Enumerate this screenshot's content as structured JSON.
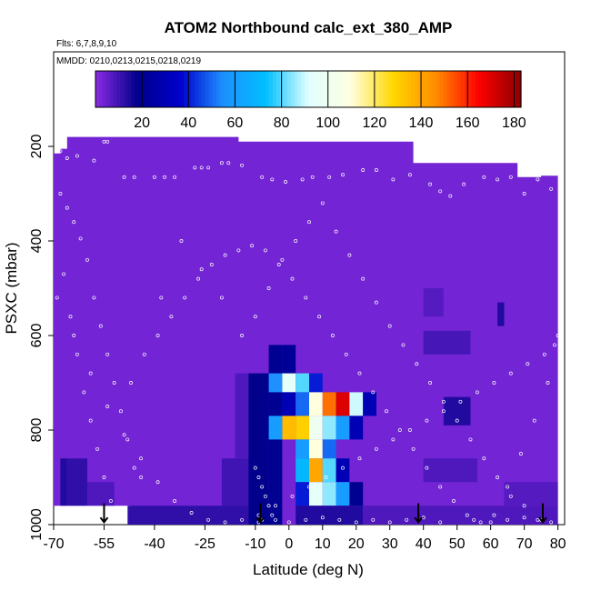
{
  "chart_data": {
    "type": "heatmap",
    "title": "ATOM2 Northbound calc_ext_380_AMP",
    "subtitle_flights": "Flts: 6,7,8,9,10",
    "subtitle_dates": "MMDD: 0210,0213,0215,0218,0219",
    "xlabel": "Latitude (deg N)",
    "ylabel": "PSXC (mbar)",
    "xlim": [
      -70,
      82
    ],
    "ylim": [
      1000,
      0
    ],
    "x_ticks": [
      -70,
      -55,
      -40,
      -25,
      -10,
      0,
      10,
      20,
      30,
      40,
      50,
      60,
      70,
      80
    ],
    "y_ticks": [
      200,
      400,
      600,
      800,
      1000
    ],
    "colorbar": {
      "range": [
        0,
        183
      ],
      "ticks": [
        20,
        40,
        60,
        80,
        100,
        120,
        140,
        160,
        180
      ],
      "colors": [
        "#8a2be2",
        "#00008b",
        "#0000cd",
        "#1e90ff",
        "#00bfff",
        "#e0ffff",
        "#ffffe0",
        "#ffd700",
        "#ff8c00",
        "#ff0000",
        "#8b0000"
      ]
    },
    "background_value": 3,
    "cells": [
      {
        "lat_min": -68,
        "lat_max": -66,
        "p_min": 860,
        "p_max": 960,
        "value": 14
      },
      {
        "lat_min": -66,
        "lat_max": -60,
        "p_min": 860,
        "p_max": 960,
        "value": 12
      },
      {
        "lat_min": -60,
        "lat_max": -52,
        "p_min": 910,
        "p_max": 960,
        "value": 8
      },
      {
        "lat_min": -48,
        "lat_max": -12,
        "p_min": 960,
        "p_max": 1000,
        "value": 12
      },
      {
        "lat_min": -20,
        "lat_max": -12,
        "p_min": 860,
        "p_max": 960,
        "value": 10
      },
      {
        "lat_min": -16,
        "lat_max": -12,
        "p_min": 680,
        "p_max": 860,
        "value": 8
      },
      {
        "lat_min": -12,
        "lat_max": -6,
        "p_min": 680,
        "p_max": 1000,
        "value": 18
      },
      {
        "lat_min": -6,
        "lat_max": -2,
        "p_min": 620,
        "p_max": 1000,
        "value": 20
      },
      {
        "lat_min": -2,
        "lat_max": 2,
        "p_min": 620,
        "p_max": 680,
        "value": 22
      },
      {
        "lat_min": -6,
        "lat_max": -2,
        "p_min": 680,
        "p_max": 720,
        "value": 55
      },
      {
        "lat_min": -2,
        "lat_max": 2,
        "p_min": 680,
        "p_max": 720,
        "value": 95
      },
      {
        "lat_min": 2,
        "lat_max": 6,
        "p_min": 680,
        "p_max": 720,
        "value": 80
      },
      {
        "lat_min": 6,
        "lat_max": 10,
        "p_min": 680,
        "p_max": 720,
        "value": 40
      },
      {
        "lat_min": -2,
        "lat_max": 2,
        "p_min": 720,
        "p_max": 770,
        "value": 30
      },
      {
        "lat_min": 2,
        "lat_max": 6,
        "p_min": 720,
        "p_max": 770,
        "value": 50
      },
      {
        "lat_min": 6,
        "lat_max": 10,
        "p_min": 720,
        "p_max": 770,
        "value": 110
      },
      {
        "lat_min": 10,
        "lat_max": 14,
        "p_min": 720,
        "p_max": 770,
        "value": 150
      },
      {
        "lat_min": 14,
        "lat_max": 18,
        "p_min": 720,
        "p_max": 770,
        "value": 170
      },
      {
        "lat_min": 18,
        "lat_max": 22,
        "p_min": 720,
        "p_max": 770,
        "value": 90
      },
      {
        "lat_min": 22,
        "lat_max": 26,
        "p_min": 720,
        "p_max": 770,
        "value": 30
      },
      {
        "lat_min": -6,
        "lat_max": -2,
        "p_min": 770,
        "p_max": 820,
        "value": 60
      },
      {
        "lat_min": -2,
        "lat_max": 2,
        "p_min": 770,
        "p_max": 820,
        "value": 135
      },
      {
        "lat_min": 2,
        "lat_max": 6,
        "p_min": 770,
        "p_max": 820,
        "value": 130
      },
      {
        "lat_min": 6,
        "lat_max": 10,
        "p_min": 770,
        "p_max": 820,
        "value": 100
      },
      {
        "lat_min": 10,
        "lat_max": 14,
        "p_min": 770,
        "p_max": 820,
        "value": 85
      },
      {
        "lat_min": 14,
        "lat_max": 18,
        "p_min": 770,
        "p_max": 820,
        "value": 60
      },
      {
        "lat_min": 18,
        "lat_max": 22,
        "p_min": 770,
        "p_max": 820,
        "value": 30
      },
      {
        "lat_min": 2,
        "lat_max": 6,
        "p_min": 820,
        "p_max": 860,
        "value": 60
      },
      {
        "lat_min": 6,
        "lat_max": 10,
        "p_min": 820,
        "p_max": 860,
        "value": 110
      },
      {
        "lat_min": 10,
        "lat_max": 14,
        "p_min": 820,
        "p_max": 860,
        "value": 50
      },
      {
        "lat_min": 2,
        "lat_max": 6,
        "p_min": 860,
        "p_max": 910,
        "value": 70
      },
      {
        "lat_min": 6,
        "lat_max": 10,
        "p_min": 860,
        "p_max": 910,
        "value": 140
      },
      {
        "lat_min": 10,
        "lat_max": 14,
        "p_min": 860,
        "p_max": 910,
        "value": 80
      },
      {
        "lat_min": 14,
        "lat_max": 18,
        "p_min": 860,
        "p_max": 910,
        "value": 30
      },
      {
        "lat_min": 2,
        "lat_max": 6,
        "p_min": 910,
        "p_max": 960,
        "value": 40
      },
      {
        "lat_min": 6,
        "lat_max": 10,
        "p_min": 910,
        "p_max": 960,
        "value": 95
      },
      {
        "lat_min": 10,
        "lat_max": 14,
        "p_min": 910,
        "p_max": 960,
        "value": 85
      },
      {
        "lat_min": 14,
        "lat_max": 18,
        "p_min": 910,
        "p_max": 960,
        "value": 60
      },
      {
        "lat_min": 18,
        "lat_max": 22,
        "p_min": 910,
        "p_max": 960,
        "value": 20
      },
      {
        "lat_min": 2,
        "lat_max": 22,
        "p_min": 960,
        "p_max": 1000,
        "value": 14
      },
      {
        "lat_min": 22,
        "lat_max": 80,
        "p_min": 960,
        "p_max": 1000,
        "value": 8
      },
      {
        "lat_min": 40,
        "lat_max": 46,
        "p_min": 500,
        "p_max": 560,
        "value": 7
      },
      {
        "lat_min": 40,
        "lat_max": 54,
        "p_min": 590,
        "p_max": 640,
        "value": 9
      },
      {
        "lat_min": 46,
        "lat_max": 54,
        "p_min": 730,
        "p_max": 790,
        "value": 14
      },
      {
        "lat_min": 40,
        "lat_max": 56,
        "p_min": 860,
        "p_max": 910,
        "value": 8
      },
      {
        "lat_min": 62,
        "lat_max": 64,
        "p_min": 530,
        "p_max": 580,
        "value": 14
      },
      {
        "lat_min": 64,
        "lat_max": 80,
        "p_min": 910,
        "p_max": 960,
        "value": 7
      }
    ],
    "sample_points": [
      [
        -68,
        210
      ],
      [
        -66,
        225
      ],
      [
        -63,
        220
      ],
      [
        -58,
        230
      ],
      [
        -55,
        190
      ],
      [
        -54,
        190
      ],
      [
        -49,
        265
      ],
      [
        -46,
        265
      ],
      [
        -40,
        265
      ],
      [
        -37,
        265
      ],
      [
        -34,
        265
      ],
      [
        -28,
        245
      ],
      [
        -26,
        245
      ],
      [
        -24,
        245
      ],
      [
        -20,
        235
      ],
      [
        -18,
        235
      ],
      [
        -14,
        240
      ],
      [
        -8,
        265
      ],
      [
        -5,
        270
      ],
      [
        -1,
        275
      ],
      [
        4,
        270
      ],
      [
        7,
        265
      ],
      [
        12,
        265
      ],
      [
        16,
        260
      ],
      [
        22,
        250
      ],
      [
        26,
        250
      ],
      [
        31,
        270
      ],
      [
        36,
        260
      ],
      [
        42,
        280
      ],
      [
        45,
        295
      ],
      [
        48,
        305
      ],
      [
        52,
        280
      ],
      [
        58,
        265
      ],
      [
        62,
        270
      ],
      [
        66,
        265
      ],
      [
        70,
        300
      ],
      [
        74,
        270
      ],
      [
        78,
        290
      ],
      [
        -68,
        300
      ],
      [
        -66,
        330
      ],
      [
        -64,
        360
      ],
      [
        -62,
        395
      ],
      [
        -60,
        440
      ],
      [
        -58,
        520
      ],
      [
        -56,
        580
      ],
      [
        -54,
        640
      ],
      [
        -52,
        700
      ],
      [
        -50,
        760
      ],
      [
        -48,
        820
      ],
      [
        -46,
        880
      ],
      [
        -44,
        900
      ],
      [
        -38,
        520
      ],
      [
        -32,
        400
      ],
      [
        -26,
        460
      ],
      [
        -20,
        520
      ],
      [
        -14,
        600
      ],
      [
        -10,
        560
      ],
      [
        -6,
        500
      ],
      [
        -2,
        440
      ],
      [
        2,
        400
      ],
      [
        6,
        360
      ],
      [
        10,
        320
      ],
      [
        14,
        380
      ],
      [
        18,
        430
      ],
      [
        22,
        480
      ],
      [
        26,
        530
      ],
      [
        30,
        580
      ],
      [
        34,
        620
      ],
      [
        38,
        660
      ],
      [
        42,
        700
      ],
      [
        46,
        740
      ],
      [
        50,
        780
      ],
      [
        54,
        820
      ],
      [
        58,
        860
      ],
      [
        62,
        900
      ],
      [
        66,
        940
      ],
      [
        70,
        960
      ],
      [
        74,
        990
      ],
      [
        78,
        995
      ],
      [
        -67,
        470
      ],
      [
        -65,
        560
      ],
      [
        -63,
        640
      ],
      [
        -61,
        720
      ],
      [
        -59,
        780
      ],
      [
        -57,
        840
      ],
      [
        -55,
        900
      ],
      [
        -53,
        950
      ],
      [
        -51,
        980
      ],
      [
        -47,
        700
      ],
      [
        -43,
        640
      ],
      [
        -39,
        600
      ],
      [
        -35,
        560
      ],
      [
        -31,
        520
      ],
      [
        -27,
        480
      ],
      [
        -23,
        450
      ],
      [
        -19,
        430
      ],
      [
        -15,
        420
      ],
      [
        -11,
        410
      ],
      [
        -7,
        420
      ],
      [
        -3,
        450
      ],
      [
        1,
        480
      ],
      [
        5,
        520
      ],
      [
        9,
        560
      ],
      [
        13,
        600
      ],
      [
        17,
        640
      ],
      [
        21,
        680
      ],
      [
        25,
        720
      ],
      [
        29,
        760
      ],
      [
        33,
        800
      ],
      [
        37,
        840
      ],
      [
        41,
        880
      ],
      [
        45,
        920
      ],
      [
        49,
        950
      ],
      [
        53,
        980
      ],
      [
        57,
        995
      ],
      [
        61,
        980
      ],
      [
        65,
        920
      ],
      [
        69,
        850
      ],
      [
        73,
        780
      ],
      [
        77,
        700
      ],
      [
        79,
        620
      ],
      [
        -69,
        520
      ],
      [
        -64,
        600
      ],
      [
        -59,
        680
      ],
      [
        -54,
        750
      ],
      [
        -49,
        810
      ],
      [
        -44,
        860
      ],
      [
        -39,
        910
      ],
      [
        -34,
        950
      ],
      [
        -29,
        975
      ],
      [
        -24,
        990
      ],
      [
        -19,
        995
      ],
      [
        -14,
        990
      ],
      [
        -9,
        980
      ],
      [
        -4,
        960
      ],
      [
        1,
        940
      ],
      [
        6,
        920
      ],
      [
        11,
        900
      ],
      [
        16,
        880
      ],
      [
        21,
        860
      ],
      [
        26,
        840
      ],
      [
        31,
        820
      ],
      [
        36,
        800
      ],
      [
        41,
        780
      ],
      [
        46,
        760
      ],
      [
        51,
        740
      ],
      [
        56,
        720
      ],
      [
        61,
        700
      ],
      [
        66,
        680
      ],
      [
        71,
        660
      ],
      [
        76,
        640
      ],
      [
        80,
        600
      ],
      [
        -10,
        880
      ],
      [
        -9,
        900
      ],
      [
        -8,
        920
      ],
      [
        -7,
        940
      ],
      [
        -6,
        960
      ],
      [
        -5,
        980
      ],
      [
        -4,
        990
      ],
      [
        -9,
        995
      ],
      [
        -8,
        990
      ],
      [
        0,
        995
      ],
      [
        5,
        990
      ],
      [
        10,
        985
      ],
      [
        15,
        990
      ],
      [
        20,
        995
      ],
      [
        25,
        990
      ],
      [
        30,
        995
      ],
      [
        35,
        990
      ],
      [
        40,
        985
      ],
      [
        45,
        995
      ],
      [
        55,
        990
      ],
      [
        60,
        995
      ],
      [
        65,
        990
      ],
      [
        70,
        985
      ],
      [
        75,
        990
      ]
    ],
    "flight_arrows_lat": [
      -55,
      -8.5,
      38.5,
      75.5
    ]
  }
}
